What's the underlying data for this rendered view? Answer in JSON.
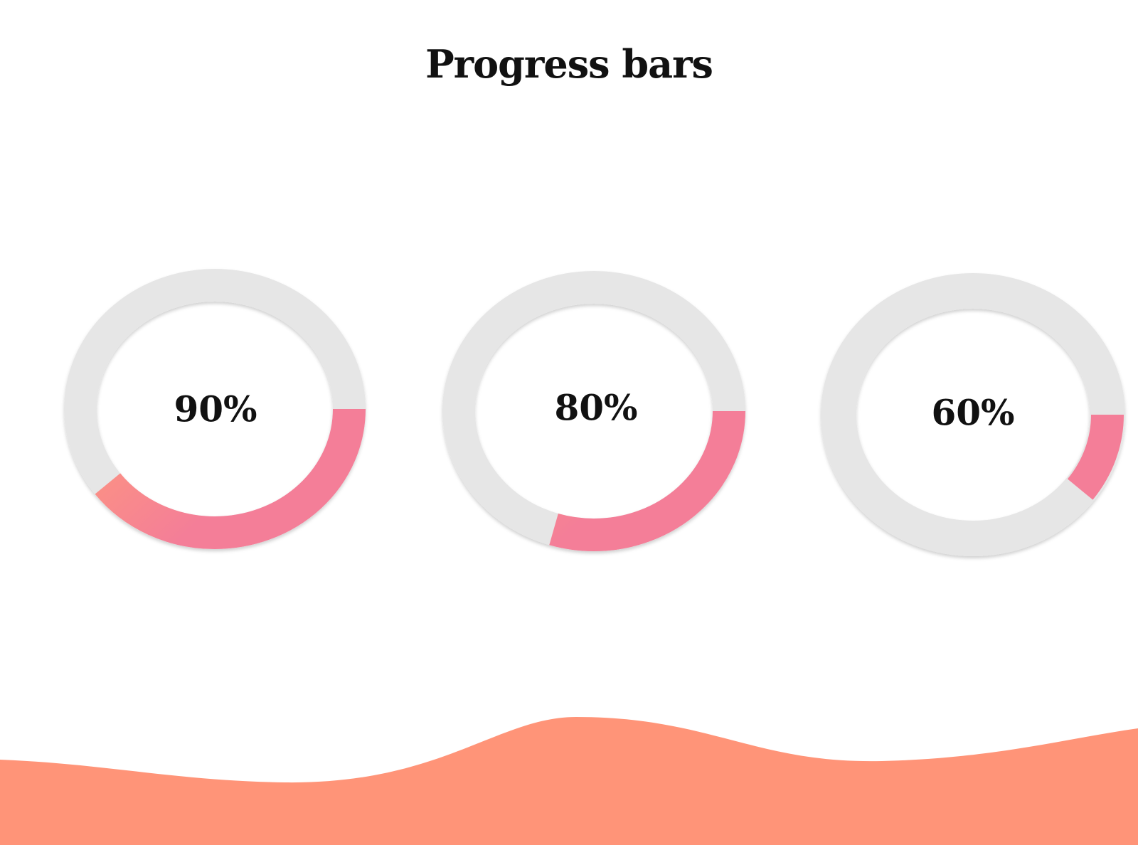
{
  "page": {
    "title": "Progress bars"
  },
  "colors": {
    "gradient_start": "#FF9A7B",
    "gradient_end": "#F47E98",
    "track": "#E6E6E6",
    "wave": "#FF9478",
    "text": "#111111"
  },
  "progress_rings": [
    {
      "label": "90%",
      "value": 0.9
    },
    {
      "label": "80%",
      "value": 0.8
    },
    {
      "label": "60%",
      "value": 0.6
    }
  ]
}
